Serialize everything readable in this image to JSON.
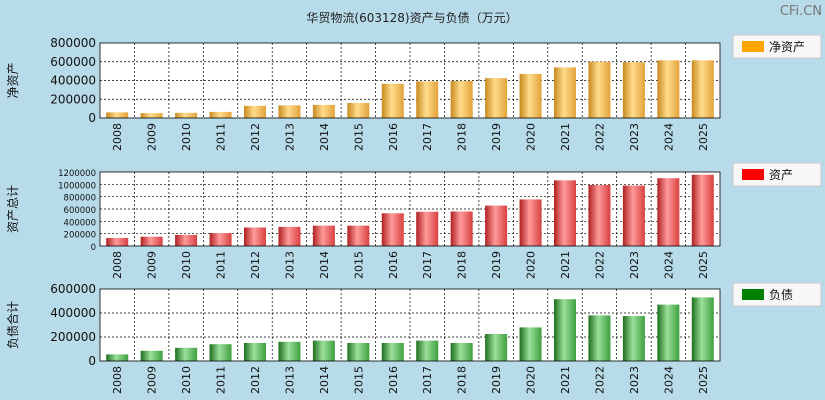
{
  "chart_data": {
    "title": "华贸物流(603128)资产与负债（万元）",
    "watermark": "CFi.CN",
    "categories": [
      "2008",
      "2009",
      "2010",
      "2011",
      "2012",
      "2013",
      "2014",
      "2015",
      "2016",
      "2017",
      "2018",
      "2019",
      "2020",
      "2021",
      "2022",
      "2023",
      "2024",
      "2025"
    ],
    "charts": [
      {
        "type": "bar",
        "ylabel": "净资产",
        "legend": "净资产",
        "legend_color": "#ffa500",
        "ylim": [
          0,
          800000
        ],
        "yticks": [
          0,
          200000,
          400000,
          600000,
          800000
        ],
        "tick_labels": [
          "0",
          "200000",
          "400000",
          "600000",
          "800000"
        ],
        "values": [
          60000,
          52000,
          55000,
          65000,
          130000,
          135000,
          140000,
          160000,
          365000,
          390000,
          395000,
          425000,
          470000,
          540000,
          600000,
          595000,
          615000,
          615000
        ],
        "bar_colors": [
          "#c88a1e",
          "#ffdc8c",
          "#e3a23a"
        ]
      },
      {
        "type": "bar",
        "ylabel": "资产总计",
        "legend": "资产",
        "legend_color": "#ff0000",
        "ylim": [
          0,
          1200000
        ],
        "yticks": [
          0,
          200000,
          400000,
          600000,
          800000,
          1000000,
          1200000
        ],
        "tick_labels": [
          "0",
          "200000",
          "400000",
          "600000",
          "800000",
          "1000000",
          "1200000"
        ],
        "values": [
          130000,
          150000,
          180000,
          210000,
          300000,
          310000,
          330000,
          330000,
          530000,
          555000,
          560000,
          655000,
          755000,
          1065000,
          990000,
          980000,
          1100000,
          1155000
        ],
        "bar_colors": [
          "#b02020",
          "#ff9a9a",
          "#d84040"
        ]
      },
      {
        "type": "bar",
        "ylabel": "负债合计",
        "legend": "负债",
        "legend_color": "#008000",
        "ylim": [
          0,
          600000
        ],
        "yticks": [
          0,
          200000,
          400000,
          600000
        ],
        "tick_labels": [
          "0",
          "200000",
          "400000",
          "600000"
        ],
        "values": [
          55000,
          85000,
          110000,
          140000,
          150000,
          160000,
          170000,
          150000,
          150000,
          170000,
          150000,
          225000,
          280000,
          515000,
          380000,
          375000,
          470000,
          530000
        ],
        "bar_colors": [
          "#1e6e1e",
          "#9be09b",
          "#3f9f3f"
        ]
      }
    ]
  }
}
